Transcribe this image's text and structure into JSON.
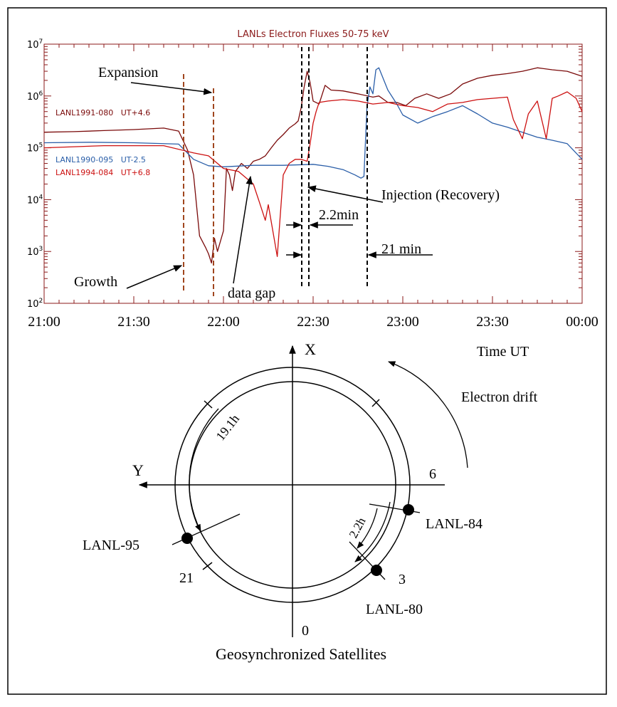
{
  "chart_data": {
    "type": "line",
    "title": "LANLs Electron Fluxes 50-75 keV",
    "xlabel": "Time UT",
    "y_scale": "log",
    "ylim": [
      100,
      10000000
    ],
    "y_ticks": [
      {
        "base": "10",
        "exp": "2"
      },
      {
        "base": "10",
        "exp": "3"
      },
      {
        "base": "10",
        "exp": "4"
      },
      {
        "base": "10",
        "exp": "5"
      },
      {
        "base": "10",
        "exp": "6"
      },
      {
        "base": "10",
        "exp": "7"
      }
    ],
    "x_ticks": [
      "21:00",
      "21:30",
      "22:00",
      "22:30",
      "23:00",
      "23:30",
      "00:00"
    ],
    "series": [
      {
        "name": "LANL1991-080",
        "legend": "LANL1991-080   UT+4.6",
        "color": "#7a0a0a",
        "points": [
          [
            0,
            200000
          ],
          [
            10,
            205000
          ],
          [
            20,
            215000
          ],
          [
            30,
            225000
          ],
          [
            40,
            240000
          ],
          [
            45,
            210000
          ],
          [
            48,
            90000
          ],
          [
            50,
            30000
          ],
          [
            52,
            2000
          ],
          [
            54,
            1200
          ],
          [
            55,
            900
          ],
          [
            56,
            600
          ],
          [
            57,
            1800
          ],
          [
            58,
            1000
          ],
          [
            60,
            2500
          ],
          [
            61,
            40000
          ],
          [
            62,
            30000
          ],
          [
            63,
            15000
          ],
          [
            64,
            35000
          ],
          [
            66,
            50000
          ],
          [
            68,
            40000
          ],
          [
            70,
            55000
          ],
          [
            72,
            60000
          ],
          [
            74,
            70000
          ],
          [
            76,
            100000
          ],
          [
            78,
            140000
          ],
          [
            80,
            180000
          ],
          [
            82,
            240000
          ],
          [
            84,
            290000
          ],
          [
            85,
            330000
          ],
          [
            86,
            600000
          ],
          [
            87,
            1500000
          ],
          [
            88,
            3000000
          ],
          [
            89,
            1800000
          ],
          [
            90,
            800000
          ],
          [
            92,
            700000
          ],
          [
            94,
            1600000
          ],
          [
            96,
            1300000
          ],
          [
            100,
            1250000
          ],
          [
            105,
            1100000
          ],
          [
            110,
            950000
          ],
          [
            112,
            1000000
          ],
          [
            115,
            750000
          ],
          [
            118,
            750000
          ],
          [
            121,
            650000
          ],
          [
            124,
            900000
          ],
          [
            128,
            1100000
          ],
          [
            132,
            900000
          ],
          [
            136,
            1100000
          ],
          [
            140,
            1700000
          ],
          [
            145,
            2200000
          ],
          [
            150,
            2500000
          ],
          [
            155,
            2700000
          ],
          [
            160,
            3000000
          ],
          [
            165,
            3500000
          ],
          [
            170,
            3200000
          ],
          [
            175,
            3000000
          ],
          [
            180,
            2400000
          ]
        ]
      },
      {
        "name": "LANL1990-095",
        "legend": "LANL1990-095   UT-2.5",
        "color": "#2a5ea8",
        "points": [
          [
            0,
            125000
          ],
          [
            15,
            128000
          ],
          [
            30,
            125000
          ],
          [
            45,
            118000
          ],
          [
            50,
            60000
          ],
          [
            55,
            45000
          ],
          [
            60,
            43000
          ],
          [
            70,
            46000
          ],
          [
            80,
            46000
          ],
          [
            90,
            48000
          ],
          [
            95,
            44000
          ],
          [
            100,
            38000
          ],
          [
            104,
            30000
          ],
          [
            106,
            26000
          ],
          [
            107,
            28000
          ],
          [
            108,
            600000
          ],
          [
            109,
            1500000
          ],
          [
            110,
            1100000
          ],
          [
            111,
            3200000
          ],
          [
            112,
            3500000
          ],
          [
            115,
            1300000
          ],
          [
            118,
            700000
          ],
          [
            120,
            430000
          ],
          [
            125,
            300000
          ],
          [
            130,
            400000
          ],
          [
            135,
            500000
          ],
          [
            140,
            650000
          ],
          [
            145,
            450000
          ],
          [
            150,
            300000
          ],
          [
            155,
            250000
          ],
          [
            160,
            200000
          ],
          [
            165,
            160000
          ],
          [
            170,
            140000
          ],
          [
            175,
            120000
          ],
          [
            180,
            60000
          ]
        ]
      },
      {
        "name": "LANL1994-084",
        "legend": "LANL1994-084   UT+6.8",
        "color": "#cc1010",
        "points": [
          [
            0,
            100000
          ],
          [
            10,
            105000
          ],
          [
            20,
            110000
          ],
          [
            30,
            110000
          ],
          [
            40,
            110000
          ],
          [
            50,
            80000
          ],
          [
            55,
            70000
          ],
          [
            60,
            40000
          ],
          [
            65,
            35000
          ],
          [
            70,
            20000
          ],
          [
            72,
            9000
          ],
          [
            74,
            4000
          ],
          [
            75,
            8000
          ],
          [
            78,
            800
          ],
          [
            80,
            30000
          ],
          [
            82,
            50000
          ],
          [
            84,
            60000
          ],
          [
            86,
            60000
          ],
          [
            88,
            55000
          ],
          [
            89,
            120000
          ],
          [
            90,
            300000
          ],
          [
            91,
            500000
          ],
          [
            92,
            750000
          ],
          [
            95,
            800000
          ],
          [
            100,
            850000
          ],
          [
            105,
            800000
          ],
          [
            110,
            700000
          ],
          [
            115,
            750000
          ],
          [
            120,
            650000
          ],
          [
            125,
            600000
          ],
          [
            130,
            500000
          ],
          [
            135,
            700000
          ],
          [
            140,
            750000
          ],
          [
            145,
            850000
          ],
          [
            150,
            900000
          ],
          [
            155,
            950000
          ],
          [
            157,
            350000
          ],
          [
            160,
            150000
          ],
          [
            162,
            450000
          ],
          [
            165,
            800000
          ],
          [
            168,
            150000
          ],
          [
            170,
            900000
          ],
          [
            172,
            1000000
          ],
          [
            175,
            1200000
          ],
          [
            178,
            900000
          ],
          [
            180,
            500000
          ]
        ]
      }
    ],
    "annotations": {
      "expansion": "Expansion",
      "growth": "Growth",
      "data_gap": "data gap",
      "injection": "Injection (Recovery)",
      "delay_short": "2.2min",
      "delay_long": "21 min"
    }
  },
  "diagram": {
    "x_axis": "X",
    "y_axis": "Y",
    "hour_6": "6",
    "hour_0": "0",
    "hour_3": "3",
    "hour_21": "21",
    "arc_191": "19.1h",
    "arc_22": "2.2h",
    "drift_label": "Electron drift",
    "sat_84": "LANL-84",
    "sat_95": "LANL-95",
    "sat_80": "LANL-80",
    "caption": "Geosynchronized Satellites"
  }
}
